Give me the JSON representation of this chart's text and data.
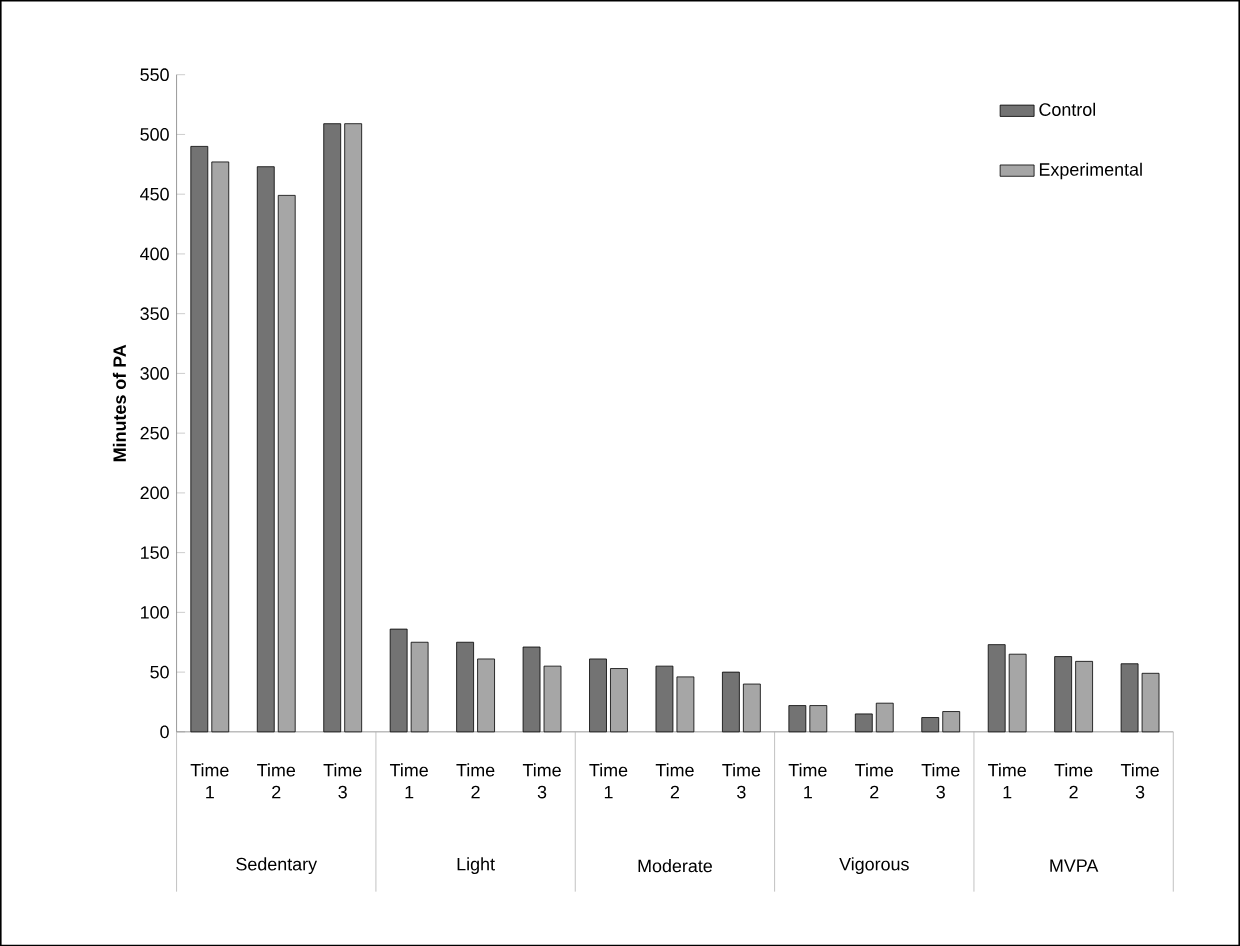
{
  "chart_data": {
    "type": "bar",
    "ylabel": "Minutes of PA",
    "categories": [
      "Time 1",
      "Time 2",
      "Time 3",
      "Time 1",
      "Time 2",
      "Time 3",
      "Time 1",
      "Time 2",
      "Time 3",
      "Time 1",
      "Time 2",
      "Time 3",
      "Time 1",
      "Time 2",
      "Time 3"
    ],
    "series": [
      {
        "name": "Control",
        "color": "#737373",
        "values": [
          490,
          473,
          509,
          86,
          75,
          71,
          61,
          55,
          50,
          22,
          15,
          12,
          73,
          63,
          57
        ]
      },
      {
        "name": "Experimental",
        "color": "#a6a6a6",
        "values": [
          477,
          449,
          509,
          75,
          61,
          55,
          53,
          46,
          40,
          22,
          24,
          17,
          65,
          59,
          49
        ]
      }
    ],
    "annotations": [
      "Sedentary",
      "Light",
      "Moderate",
      "Vigorous",
      "MVPA"
    ],
    "ylim": [
      0,
      550
    ],
    "yticks": [
      0,
      50,
      100,
      150,
      200,
      250,
      300,
      350,
      400,
      450,
      500,
      550
    ],
    "grid": false,
    "legend": "top right"
  }
}
